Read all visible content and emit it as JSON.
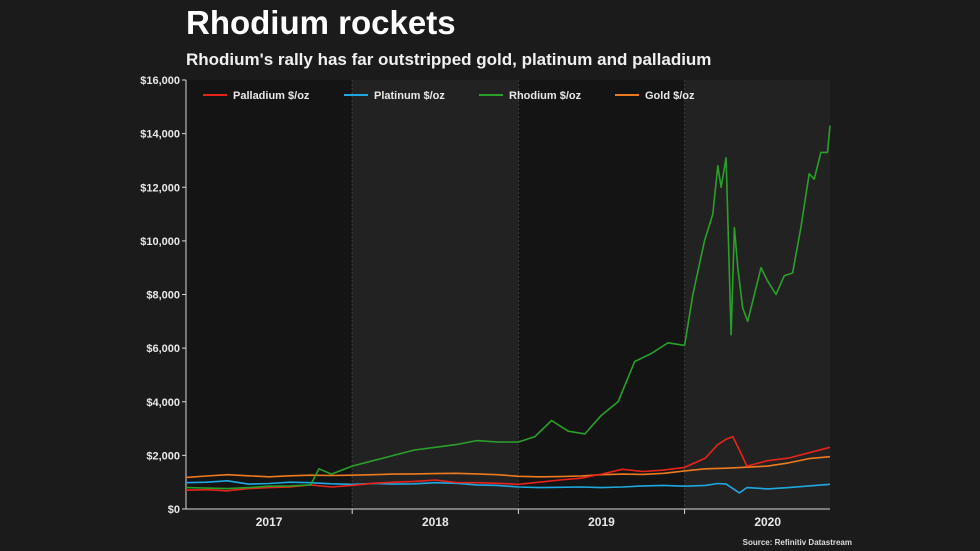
{
  "chart_data": {
    "type": "line",
    "title": "Rhodium rockets",
    "subtitle": "Rhodium's rally has far outstripped gold, platinum and palladium",
    "source": "Source: Refinitiv Datastream",
    "xlabel": "",
    "ylabel": "",
    "x_range": [
      2016.5,
      2020.375
    ],
    "ylim": [
      0,
      16000
    ],
    "y_ticks": [
      0,
      2000,
      4000,
      6000,
      8000,
      10000,
      12000,
      14000,
      16000
    ],
    "y_tick_labels": [
      "$0",
      "$2,000",
      "$4,000",
      "$6,000",
      "$8,000",
      "$10,000",
      "$12,000",
      "$14,000",
      "$16,000"
    ],
    "x_tick_labels": [
      {
        "label": "2017",
        "x": 2017.0
      },
      {
        "label": "2018",
        "x": 2018.0
      },
      {
        "label": "2019",
        "x": 2019.0
      },
      {
        "label": "2020",
        "x": 2020.0
      }
    ],
    "year_boundaries": [
      2017.5,
      2018.5,
      2019.5
    ],
    "shaded_spans": [
      [
        2017.5,
        2018.5
      ],
      [
        2019.5,
        2020.375
      ]
    ],
    "grid": false,
    "legend_position": "top-left",
    "series": [
      {
        "name": "Palladium $/oz",
        "color": "#e8231c",
        "x": [
          2016.5,
          2016.625,
          2016.75,
          2016.875,
          2017.0,
          2017.125,
          2017.25,
          2017.375,
          2017.5,
          2017.625,
          2017.75,
          2017.875,
          2018.0,
          2018.125,
          2018.25,
          2018.375,
          2018.5,
          2018.625,
          2018.75,
          2018.875,
          2019.0,
          2019.125,
          2019.25,
          2019.375,
          2019.5,
          2019.625,
          2019.7,
          2019.75,
          2019.79,
          2019.83,
          2019.875,
          2020.0,
          2020.125,
          2020.25,
          2020.375
        ],
        "y": [
          700,
          720,
          680,
          760,
          800,
          820,
          900,
          820,
          880,
          960,
          1000,
          1030,
          1080,
          990,
          980,
          960,
          920,
          1000,
          1080,
          1150,
          1300,
          1480,
          1400,
          1450,
          1550,
          1900,
          2400,
          2600,
          2700,
          2200,
          1600,
          1800,
          1900,
          2100,
          2300
        ]
      },
      {
        "name": "Platinum $/oz",
        "color": "#1fa8e0",
        "x": [
          2016.5,
          2016.625,
          2016.75,
          2016.875,
          2017.0,
          2017.125,
          2017.25,
          2017.375,
          2017.5,
          2017.625,
          2017.75,
          2017.875,
          2018.0,
          2018.125,
          2018.25,
          2018.375,
          2018.5,
          2018.625,
          2018.75,
          2018.875,
          2019.0,
          2019.125,
          2019.25,
          2019.375,
          2019.5,
          2019.625,
          2019.7,
          2019.75,
          2019.83,
          2019.875,
          2020.0,
          2020.125,
          2020.25,
          2020.375
        ],
        "y": [
          980,
          1000,
          1050,
          930,
          950,
          1000,
          980,
          940,
          920,
          950,
          930,
          940,
          980,
          960,
          900,
          880,
          820,
          800,
          810,
          820,
          800,
          820,
          860,
          880,
          850,
          880,
          950,
          930,
          600,
          800,
          750,
          800,
          860,
          920
        ]
      },
      {
        "name": "Rhodium $/oz",
        "color": "#2aa02a",
        "x": [
          2016.5,
          2016.625,
          2016.75,
          2016.875,
          2017.0,
          2017.125,
          2017.25,
          2017.3,
          2017.375,
          2017.5,
          2017.625,
          2017.75,
          2017.875,
          2018.0,
          2018.125,
          2018.25,
          2018.375,
          2018.5,
          2018.6,
          2018.7,
          2018.8,
          2018.9,
          2019.0,
          2019.1,
          2019.2,
          2019.3,
          2019.4,
          2019.5,
          2019.55,
          2019.62,
          2019.67,
          2019.7,
          2019.72,
          2019.75,
          2019.78,
          2019.8,
          2019.82,
          2019.85,
          2019.88,
          2019.92,
          2019.96,
          2020.0,
          2020.05,
          2020.1,
          2020.15,
          2020.2,
          2020.25,
          2020.28,
          2020.32,
          2020.36,
          2020.375
        ],
        "y": [
          800,
          780,
          760,
          800,
          850,
          860,
          900,
          1500,
          1300,
          1600,
          1800,
          2000,
          2200,
          2300,
          2400,
          2550,
          2500,
          2500,
          2700,
          3300,
          2900,
          2800,
          3500,
          4000,
          5500,
          5800,
          6200,
          6100,
          8000,
          10000,
          11000,
          12800,
          12000,
          13100,
          6500,
          10500,
          9000,
          7500,
          7000,
          8000,
          9000,
          8500,
          8000,
          8700,
          8800,
          10500,
          12500,
          12300,
          13300,
          13300,
          14300
        ]
      },
      {
        "name": "Gold $/oz",
        "color": "#ee7a1f",
        "x": [
          2016.5,
          2016.625,
          2016.75,
          2016.875,
          2017.0,
          2017.125,
          2017.25,
          2017.375,
          2017.5,
          2017.625,
          2017.75,
          2017.875,
          2018.0,
          2018.125,
          2018.25,
          2018.375,
          2018.5,
          2018.625,
          2018.75,
          2018.875,
          2019.0,
          2019.125,
          2019.25,
          2019.375,
          2019.5,
          2019.625,
          2019.75,
          2019.875,
          2020.0,
          2020.125,
          2020.25,
          2020.375
        ],
        "y": [
          1180,
          1230,
          1280,
          1240,
          1200,
          1240,
          1260,
          1250,
          1260,
          1280,
          1300,
          1310,
          1320,
          1330,
          1310,
          1280,
          1220,
          1200,
          1210,
          1230,
          1280,
          1300,
          1290,
          1330,
          1420,
          1500,
          1520,
          1560,
          1600,
          1720,
          1880,
          1950
        ]
      }
    ]
  }
}
